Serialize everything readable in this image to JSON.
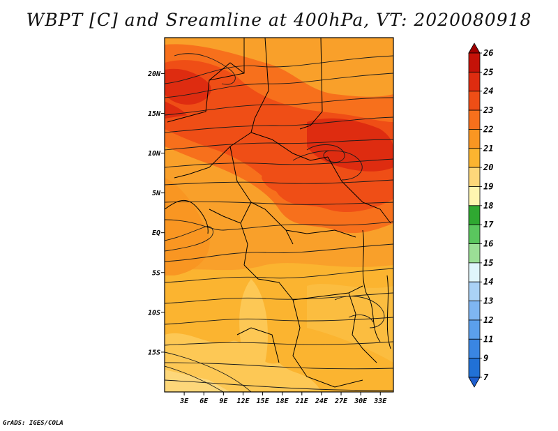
{
  "title": "WBPT [C] and Sreamline at 400hPa, VT: 2020080918",
  "credit": "GrADS: IGES/COLA",
  "map": {
    "lat_labels": [
      "20N",
      "15N",
      "10N",
      "5N",
      "EQ",
      "5S",
      "10S",
      "15S"
    ],
    "lon_labels": [
      "3E",
      "6E",
      "9E",
      "12E",
      "15E",
      "18E",
      "21E",
      "24E",
      "27E",
      "30E",
      "33E"
    ],
    "lat_range": [
      -20,
      24.5
    ],
    "lon_range": [
      0,
      35
    ]
  },
  "colorbar": {
    "levels": [
      "26",
      "25",
      "24",
      "23",
      "22",
      "21",
      "20",
      "19",
      "18",
      "17",
      "16",
      "15",
      "14",
      "13",
      "12",
      "11",
      "9",
      "7"
    ],
    "colors": [
      "#a00000",
      "#c41208",
      "#de2c10",
      "#ef4e16",
      "#f7701c",
      "#f99622",
      "#fbb430",
      "#fdd77a",
      "#fef5b0",
      "#2fa831",
      "#5ac65e",
      "#9bdf96",
      "#e0f6fb",
      "#aad2f6",
      "#7fb6f2",
      "#5b9fec",
      "#3a86e3",
      "#2171d6",
      "#1e5fd0"
    ]
  }
}
